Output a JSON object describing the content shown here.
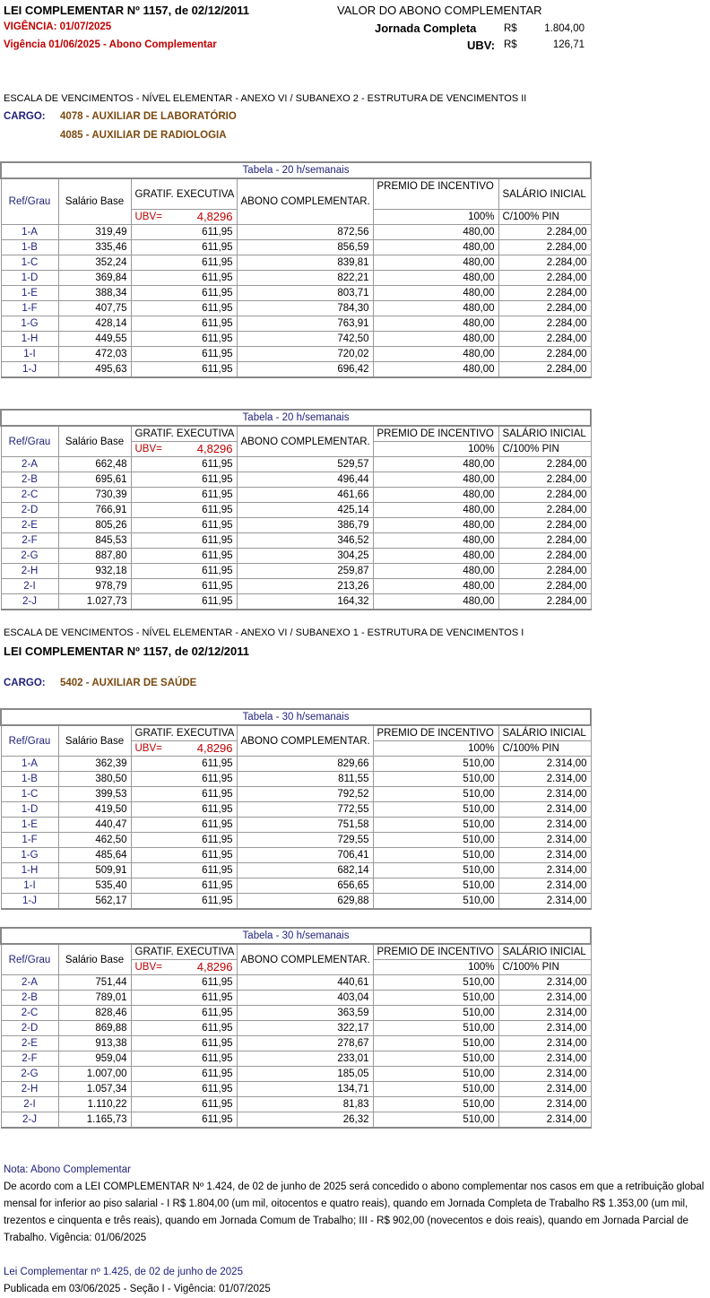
{
  "header": {
    "law": "LEI COMPLEMENTAR Nº 1157, de 02/12/2011",
    "vigencia": "VIGÊNCIA: 01/07/2025",
    "vigencia_abono": "Vigência 01/06/2025 - Abono Complementar",
    "valor_title": "VALOR DO ABONO COMPLEMENTAR",
    "jornada_label": "Jornada Completa",
    "jornada_currency": "R$",
    "jornada_value": "1.804,00",
    "ubv_label": "UBV:",
    "ubv_currency": "R$",
    "ubv_value": "126,71"
  },
  "section1": {
    "escala": "ESCALA DE VENCIMENTOS  -  NÍVEL ELEMENTAR   -  ANEXO VI / SUBANEXO 2  -   ESTRUTURA DE VENCIMENTOS  II",
    "cargo_label": "CARGO:",
    "cargos": [
      "4078 - AUXILIAR DE LABORATÓRIO",
      "4085 - AUXILIAR DE RADIOLOGIA"
    ]
  },
  "section2": {
    "escala": "ESCALA DE VENCIMENTOS  -  NÍVEL ELEMENTAR   -  ANEXO VI / SUBANEXO 1  -   ESTRUTURA DE VENCIMENTOS  I",
    "law": "LEI COMPLEMENTAR Nº 1157, de 02/12/2011",
    "cargo_label": "CARGO:",
    "cargos": [
      "5402 - AUXILIAR DE SAÚDE"
    ]
  },
  "columns": {
    "ref": "Ref/Grau",
    "base": "Salário Base",
    "gratif": "GRATIF. EXECUTIVA",
    "ubv_label": "UBV=",
    "ubv_value": "4,8296",
    "abono": "ABONO COMPLEMENTAR.",
    "premio": "PREMIO DE INCENTIVO",
    "premio_pct": "100%",
    "salario": "SALÁRIO INICIAL",
    "salario_sub": "C/100% PIN"
  },
  "tables": [
    {
      "title": "Tabela - 20 h/semanais",
      "rows": [
        [
          "1-A",
          "319,49",
          "611,95",
          "872,56",
          "480,00",
          "2.284,00"
        ],
        [
          "1-B",
          "335,46",
          "611,95",
          "856,59",
          "480,00",
          "2.284,00"
        ],
        [
          "1-C",
          "352,24",
          "611,95",
          "839,81",
          "480,00",
          "2.284,00"
        ],
        [
          "1-D",
          "369,84",
          "611,95",
          "822,21",
          "480,00",
          "2.284,00"
        ],
        [
          "1-E",
          "388,34",
          "611,95",
          "803,71",
          "480,00",
          "2.284,00"
        ],
        [
          "1-F",
          "407,75",
          "611,95",
          "784,30",
          "480,00",
          "2.284,00"
        ],
        [
          "1-G",
          "428,14",
          "611,95",
          "763,91",
          "480,00",
          "2.284,00"
        ],
        [
          "1-H",
          "449,55",
          "611,95",
          "742,50",
          "480,00",
          "2.284,00"
        ],
        [
          "1-I",
          "472,03",
          "611,95",
          "720,02",
          "480,00",
          "2.284,00"
        ],
        [
          "1-J",
          "495,63",
          "611,95",
          "696,42",
          "480,00",
          "2.284,00"
        ]
      ]
    },
    {
      "title": "Tabela - 20 h/semanais",
      "rows": [
        [
          "2-A",
          "662,48",
          "611,95",
          "529,57",
          "480,00",
          "2.284,00"
        ],
        [
          "2-B",
          "695,61",
          "611,95",
          "496,44",
          "480,00",
          "2.284,00"
        ],
        [
          "2-C",
          "730,39",
          "611,95",
          "461,66",
          "480,00",
          "2.284,00"
        ],
        [
          "2-D",
          "766,91",
          "611,95",
          "425,14",
          "480,00",
          "2.284,00"
        ],
        [
          "2-E",
          "805,26",
          "611,95",
          "386,79",
          "480,00",
          "2.284,00"
        ],
        [
          "2-F",
          "845,53",
          "611,95",
          "346,52",
          "480,00",
          "2.284,00"
        ],
        [
          "2-G",
          "887,80",
          "611,95",
          "304,25",
          "480,00",
          "2.284,00"
        ],
        [
          "2-H",
          "932,18",
          "611,95",
          "259,87",
          "480,00",
          "2.284,00"
        ],
        [
          "2-I",
          "978,79",
          "611,95",
          "213,26",
          "480,00",
          "2.284,00"
        ],
        [
          "2-J",
          "1.027,73",
          "611,95",
          "164,32",
          "480,00",
          "2.284,00"
        ]
      ]
    },
    {
      "title": "Tabela - 30 h/semanais",
      "rows": [
        [
          "1-A",
          "362,39",
          "611,95",
          "829,66",
          "510,00",
          "2.314,00"
        ],
        [
          "1-B",
          "380,50",
          "611,95",
          "811,55",
          "510,00",
          "2.314,00"
        ],
        [
          "1-C",
          "399,53",
          "611,95",
          "792,52",
          "510,00",
          "2.314,00"
        ],
        [
          "1-D",
          "419,50",
          "611,95",
          "772,55",
          "510,00",
          "2.314,00"
        ],
        [
          "1-E",
          "440,47",
          "611,95",
          "751,58",
          "510,00",
          "2.314,00"
        ],
        [
          "1-F",
          "462,50",
          "611,95",
          "729,55",
          "510,00",
          "2.314,00"
        ],
        [
          "1-G",
          "485,64",
          "611,95",
          "706,41",
          "510,00",
          "2.314,00"
        ],
        [
          "1-H",
          "509,91",
          "611,95",
          "682,14",
          "510,00",
          "2.314,00"
        ],
        [
          "1-I",
          "535,40",
          "611,95",
          "656,65",
          "510,00",
          "2.314,00"
        ],
        [
          "1-J",
          "562,17",
          "611,95",
          "629,88",
          "510,00",
          "2.314,00"
        ]
      ]
    },
    {
      "title": "Tabela - 30 h/semanais",
      "rows": [
        [
          "2-A",
          "751,44",
          "611,95",
          "440,61",
          "510,00",
          "2.314,00"
        ],
        [
          "2-B",
          "789,01",
          "611,95",
          "403,04",
          "510,00",
          "2.314,00"
        ],
        [
          "2-C",
          "828,46",
          "611,95",
          "363,59",
          "510,00",
          "2.314,00"
        ],
        [
          "2-D",
          "869,88",
          "611,95",
          "322,17",
          "510,00",
          "2.314,00"
        ],
        [
          "2-E",
          "913,38",
          "611,95",
          "278,67",
          "510,00",
          "2.314,00"
        ],
        [
          "2-F",
          "959,04",
          "611,95",
          "233,01",
          "510,00",
          "2.314,00"
        ],
        [
          "2-G",
          "1.007,00",
          "611,95",
          "185,05",
          "510,00",
          "2.314,00"
        ],
        [
          "2-H",
          "1.057,34",
          "611,95",
          "134,71",
          "510,00",
          "2.314,00"
        ],
        [
          "2-I",
          "1.110,22",
          "611,95",
          "81,83",
          "510,00",
          "2.314,00"
        ],
        [
          "2-J",
          "1.165,73",
          "611,95",
          "26,32",
          "510,00",
          "2.314,00"
        ]
      ]
    }
  ],
  "note": {
    "title": "Nota: Abono Complementar",
    "text": "De acordo com a  LEI COMPLEMENTAR Nº 1.424, de 02 de junho de 2025 será concedido o abono complementar nos casos em que a retribuição global mensal for inferior ao piso salarial  - I R$ 1.804,00 (um mil, oitocentos e quatro reais), quando em Jornada Completa de Trabalho R$ 1.353,00 (um mil, trezentos e cinquenta e três reais), quando em Jornada Comum de Trabalho; III - R$ 902,00 (novecentos e dois reais), quando em Jornada Parcial de Trabalho. Vigência: 01/06/2025",
    "law2": "Lei Complementar nº 1.425, de 02 de junho de 2025",
    "published": "Publicada em 03/06/2025 - Seção I - Vigência: 01/07/2025"
  }
}
